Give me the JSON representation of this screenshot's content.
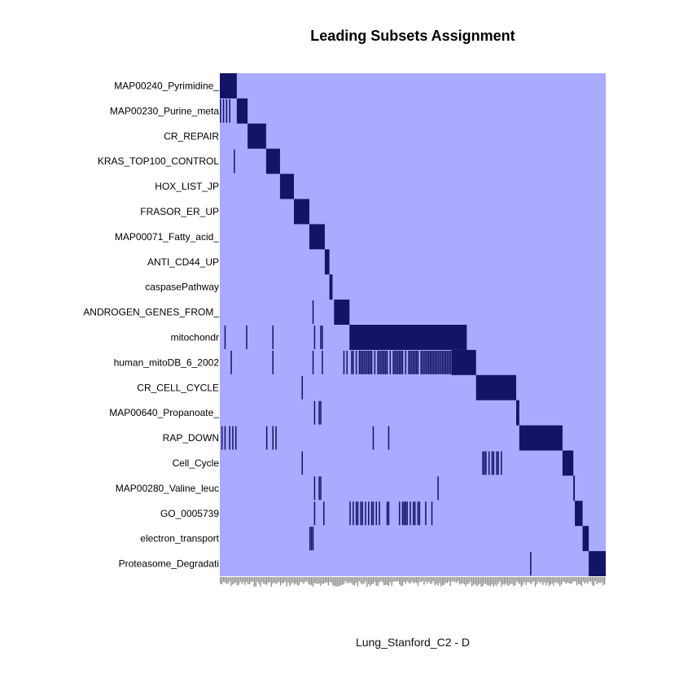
{
  "chart_data": {
    "type": "heatmap",
    "title": "Leading Subsets Assignment",
    "xlabel": "Lung_Stanford_C2 - D",
    "colors": {
      "background": "#aaaaff",
      "member": "#141466",
      "tick_label": "#8c8c8c"
    },
    "n_genes": 250,
    "rows": [
      {
        "label": "MAP00240_Pyrimidine_",
        "block": [
          0,
          11
        ],
        "extra": []
      },
      {
        "label": "MAP00230_Purine_meta",
        "block": [
          11,
          18
        ],
        "extra": [
          0,
          2,
          4,
          6
        ]
      },
      {
        "label": "CR_REPAIR",
        "block": [
          18,
          30
        ],
        "extra": []
      },
      {
        "label": "KRAS_TOP100_CONTROL",
        "block": [
          30,
          39
        ],
        "extra": [
          9
        ]
      },
      {
        "label": "HOX_LIST_JP",
        "block": [
          39,
          48
        ],
        "extra": []
      },
      {
        "label": "FRASOR_ER_UP",
        "block": [
          48,
          58
        ],
        "extra": []
      },
      {
        "label": "MAP00071_Fatty_acid_",
        "block": [
          58,
          68
        ],
        "extra": []
      },
      {
        "label": "ANTI_CD44_UP",
        "block": [
          68,
          71
        ],
        "extra": []
      },
      {
        "label": "caspasePathway",
        "block": [
          71,
          73
        ],
        "extra": []
      },
      {
        "label": "ANDROGEN_GENES_FROM_",
        "block": [
          74,
          84
        ],
        "extra": [
          60
        ]
      },
      {
        "label": "mitochondr",
        "block": [
          84,
          160
        ],
        "extra": [
          3,
          17,
          34,
          61,
          65,
          66
        ]
      },
      {
        "label": "human_mitoDB_6_2002",
        "block": [
          150,
          166
        ],
        "extra": [
          7,
          34,
          60,
          66,
          80,
          82,
          85,
          86,
          88,
          90,
          91,
          92,
          93,
          94,
          95,
          96,
          97,
          98,
          100,
          102,
          103,
          104,
          105,
          106,
          107,
          108,
          110,
          112,
          113,
          114,
          115,
          116,
          117,
          118,
          120,
          122,
          123,
          124,
          125,
          126,
          127,
          128,
          130,
          131,
          132,
          133,
          134,
          135,
          136,
          137,
          138,
          139,
          140,
          141,
          142,
          143,
          144,
          145,
          146,
          147,
          148,
          149
        ]
      },
      {
        "label": "CR_CELL_CYCLE",
        "block": [
          166,
          192
        ],
        "extra": [
          53
        ]
      },
      {
        "label": "MAP00640_Propanoate_",
        "block": [
          192,
          194
        ],
        "extra": [
          61,
          64,
          65
        ]
      },
      {
        "label": "RAP_DOWN",
        "block": [
          194,
          222
        ],
        "extra": [
          1,
          3,
          6,
          8,
          10,
          30,
          34,
          36,
          99,
          109
        ]
      },
      {
        "label": "Cell_Cycle",
        "block": [
          222,
          229
        ],
        "extra": [
          53,
          170,
          171,
          172,
          174,
          176,
          177,
          179,
          180,
          182
        ]
      },
      {
        "label": "MAP00280_Valine_leuc",
        "block": [
          229,
          230
        ],
        "extra": [
          61,
          64,
          65,
          141
        ]
      },
      {
        "label": "GO_0005739",
        "block": [
          230,
          235
        ],
        "extra": [
          61,
          67,
          84,
          86,
          88,
          89,
          91,
          92,
          94,
          96,
          98,
          99,
          101,
          103,
          108,
          109,
          116,
          118,
          119,
          120,
          121,
          123,
          125,
          126,
          128,
          129,
          133,
          137
        ]
      },
      {
        "label": "electron_transport",
        "block": [
          235,
          239
        ],
        "extra": [
          58,
          59,
          60
        ]
      },
      {
        "label": "Proteasome_Degradati",
        "block": [
          239,
          250
        ],
        "extra": [
          201
        ]
      }
    ]
  }
}
